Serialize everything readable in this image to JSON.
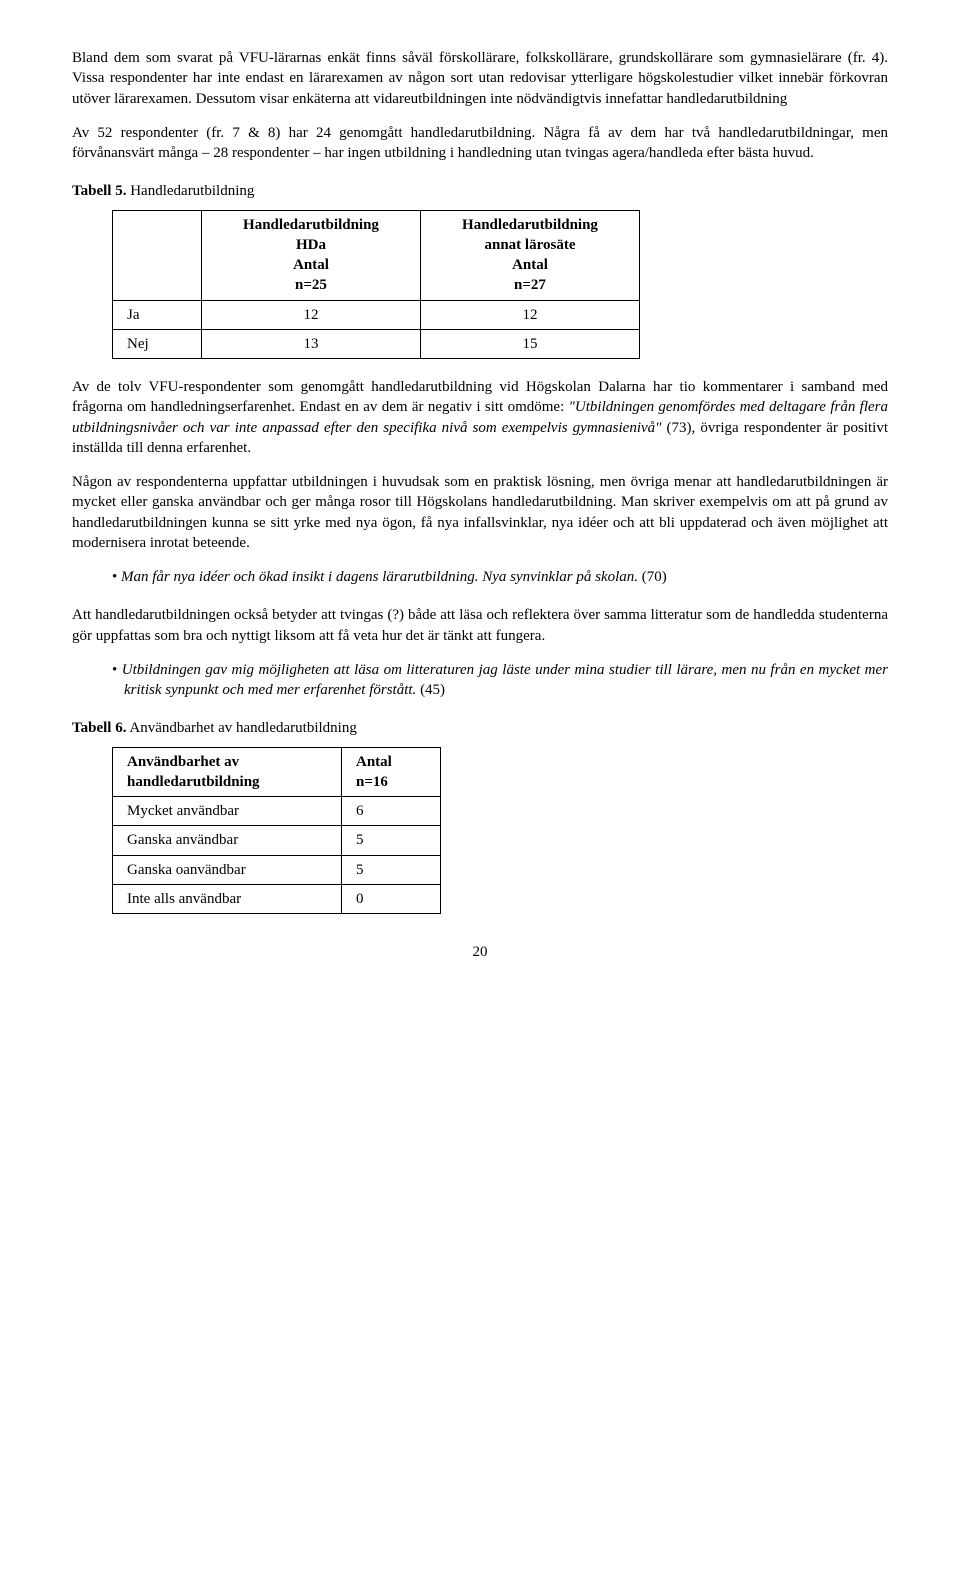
{
  "para1": "Bland dem som svarat på VFU-lärarnas enkät finns såväl förskollärare, folkskollärare, grundskollärare som gymnasielärare (fr. 4). Vissa respondenter har inte endast en lärarexamen av någon sort utan redovisar ytterligare högskolestudier vilket innebär förkovran utöver lärarexamen. Dessutom visar enkäterna att vidareutbildningen inte nödvändigtvis innefattar handledarutbildning",
  "para2a": "Av 52 respondenter (fr. 7 & 8) har 24 genomgått handledarutbildning. Några få av dem har två handledarutbildningar, men förvånansvärt många – 28 respondenter – har ingen utbildning i handledning utan tvingas agera/handleda efter bästa huvud.",
  "table5": {
    "title_bold": "Tabell 5.",
    "title_rest": " Handledarutbildning",
    "header": [
      "",
      "Handledarutbildning HDa Antal n=25",
      "Handledarutbildning annat lärosäte Antal n=27"
    ],
    "h1_l1": "Handledarutbildning",
    "h1_l2": "HDa",
    "h1_l3": "Antal",
    "h1_l4": "n=25",
    "h2_l1": "Handledarutbildning",
    "h2_l2": "annat lärosäte",
    "h2_l3": "Antal",
    "h2_l4": "n=27",
    "rows": [
      {
        "label": "Ja",
        "v1": "12",
        "v2": "12"
      },
      {
        "label": "Nej",
        "v1": "13",
        "v2": "15"
      }
    ]
  },
  "para3a": "Av de tolv VFU-respondenter som genomgått handledarutbildning vid Högskolan Dalarna har tio kommentarer i samband med frågorna om handledningserfarenhet. Endast en av dem är negativ i sitt omdöme: ",
  "para3quote": "\"Utbildningen genomfördes med deltagare från flera utbildningsnivåer och var inte anpassad efter den specifika nivå som exempelvis gymnasienivå\"",
  "para3b": " (73), övriga respondenter är positivt inställda till denna erfarenhet.",
  "para4": "Någon av respondenterna uppfattar utbildningen i huvudsak som en praktisk lösning, men övriga menar att handledarutbildningen är mycket eller ganska användbar och ger många rosor till Högskolans handledarutbildning. Man skriver exempelvis om att på grund av handledarutbildningen kunna se sitt yrke med nya ögon, få nya infallsvinklar, nya idéer och att bli uppdaterad och även möjlighet att modernisera inrotat beteende.",
  "bullet1": "Man får nya idéer och ökad insikt i dagens lärarutbildning. Nya synvinklar på skolan.",
  "bullet1ref": " (70)",
  "para5": "Att handledarutbildningen också betyder att tvingas (?) både att läsa och reflektera över samma litteratur som de handledda studenterna gör uppfattas som bra och nyttigt liksom att få veta hur det är tänkt att fungera.",
  "bullet2": "Utbildningen gav mig möjligheten att läsa om litteraturen jag läste under mina studier till lärare, men nu från en mycket mer kritisk synpunkt och med mer erfarenhet förstått.",
  "bullet2ref": " (45)",
  "table6": {
    "title_bold": "Tabell 6.",
    "title_rest": " Användbarhet av handledarutbildning",
    "h1_l1": "Användbarhet av",
    "h1_l2": "handledarutbildning",
    "h2_l1": "Antal",
    "h2_l2": "n=16",
    "rows": [
      {
        "label": "Mycket användbar",
        "v": "6"
      },
      {
        "label": "Ganska användbar",
        "v": "5"
      },
      {
        "label": "Ganska oanvändbar",
        "v": "5"
      },
      {
        "label": "Inte alls användbar",
        "v": "0"
      }
    ]
  },
  "pagenum": "20"
}
